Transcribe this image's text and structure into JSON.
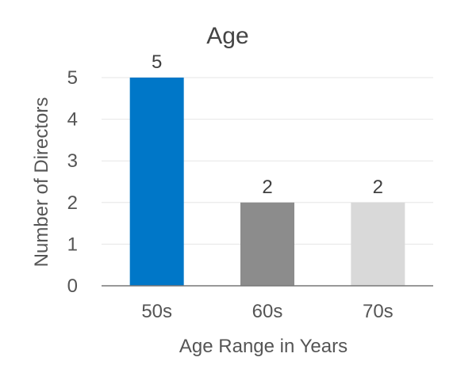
{
  "chart_data": {
    "type": "bar",
    "title": "Age",
    "xlabel": "Age Range in Years",
    "ylabel": "Number of Directors",
    "categories": [
      "50s",
      "60s",
      "70s"
    ],
    "values": [
      5,
      2,
      2
    ],
    "colors": [
      "#0077c8",
      "#8c8c8c",
      "#d9d9d9"
    ],
    "ylim": [
      0,
      5
    ],
    "yticks": [
      "0",
      "1",
      "2",
      "3",
      "4",
      "5"
    ],
    "data_labels": [
      "5",
      "2",
      "2"
    ],
    "grid": true,
    "legend": "none"
  }
}
